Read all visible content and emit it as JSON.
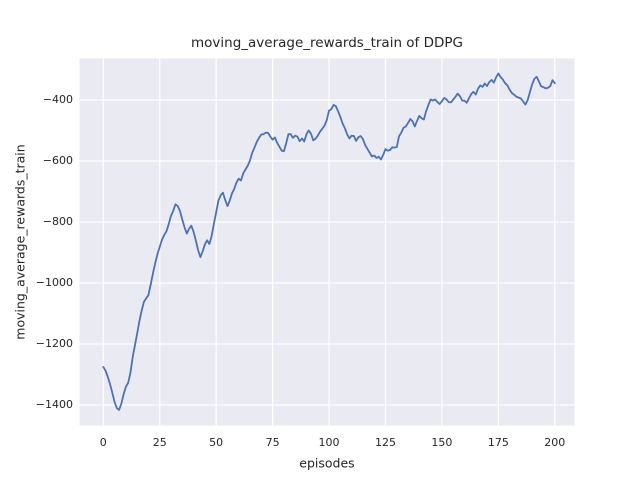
{
  "chart_data": {
    "type": "line",
    "title": "moving_average_rewards_train of DDPG",
    "xlabel": "episodes",
    "ylabel": "moving_average_rewards_train",
    "grid": true,
    "legend": null,
    "x_ticks": [
      0,
      25,
      50,
      75,
      100,
      125,
      150,
      175,
      200
    ],
    "x_tick_labels": [
      "0",
      "25",
      "50",
      "75",
      "100",
      "125",
      "150",
      "175",
      "200"
    ],
    "y_ticks": [
      -400,
      -600,
      -800,
      -1000,
      -1200,
      -1400
    ],
    "y_tick_labels": [
      "−400",
      "−600",
      "−800",
      "−1000",
      "−1200",
      "−1400"
    ],
    "xlim": [
      -10.54,
      208.73
    ],
    "ylim": [
      -1467.2,
      -263.9
    ],
    "style": {
      "axes_background": "#EAEAF2",
      "grid_color": "#FFFFFF",
      "text_color": "#262626",
      "line_color": "#4C72B0",
      "figure_background": "#FFFFFF"
    },
    "series": [
      {
        "name": "moving_average_rewards_train",
        "color": "#4C72B0",
        "x_start": 0,
        "x_step": 1,
        "values": [
          -1275,
          -1288,
          -1308,
          -1332,
          -1360,
          -1390,
          -1410,
          -1416,
          -1395,
          -1365,
          -1340,
          -1328,
          -1295,
          -1245,
          -1205,
          -1165,
          -1125,
          -1090,
          -1062,
          -1050,
          -1040,
          -1005,
          -968,
          -935,
          -905,
          -882,
          -858,
          -843,
          -830,
          -806,
          -780,
          -763,
          -742,
          -748,
          -764,
          -792,
          -818,
          -838,
          -822,
          -812,
          -832,
          -862,
          -892,
          -915,
          -897,
          -873,
          -860,
          -872,
          -845,
          -806,
          -768,
          -730,
          -712,
          -704,
          -728,
          -748,
          -730,
          -706,
          -692,
          -670,
          -658,
          -664,
          -640,
          -628,
          -615,
          -598,
          -572,
          -556,
          -537,
          -524,
          -513,
          -512,
          -507,
          -508,
          -520,
          -530,
          -523,
          -540,
          -553,
          -566,
          -568,
          -542,
          -512,
          -512,
          -524,
          -517,
          -520,
          -535,
          -526,
          -536,
          -512,
          -500,
          -510,
          -532,
          -527,
          -517,
          -504,
          -494,
          -484,
          -466,
          -435,
          -430,
          -416,
          -420,
          -437,
          -455,
          -477,
          -492,
          -512,
          -526,
          -517,
          -518,
          -534,
          -522,
          -518,
          -528,
          -548,
          -560,
          -573,
          -585,
          -582,
          -590,
          -586,
          -595,
          -580,
          -561,
          -566,
          -564,
          -555,
          -556,
          -554,
          -519,
          -507,
          -491,
          -487,
          -475,
          -462,
          -470,
          -487,
          -468,
          -452,
          -460,
          -464,
          -437,
          -416,
          -398,
          -402,
          -398,
          -407,
          -413,
          -404,
          -393,
          -398,
          -407,
          -408,
          -399,
          -389,
          -379,
          -388,
          -402,
          -402,
          -409,
          -394,
          -380,
          -373,
          -382,
          -363,
          -352,
          -357,
          -346,
          -354,
          -341,
          -334,
          -343,
          -326,
          -313,
          -325,
          -333,
          -345,
          -352,
          -366,
          -377,
          -383,
          -389,
          -392,
          -395,
          -405,
          -415,
          -400,
          -373,
          -348,
          -330,
          -324,
          -340,
          -355,
          -358,
          -362,
          -360,
          -354,
          -335,
          -345
        ]
      }
    ]
  }
}
